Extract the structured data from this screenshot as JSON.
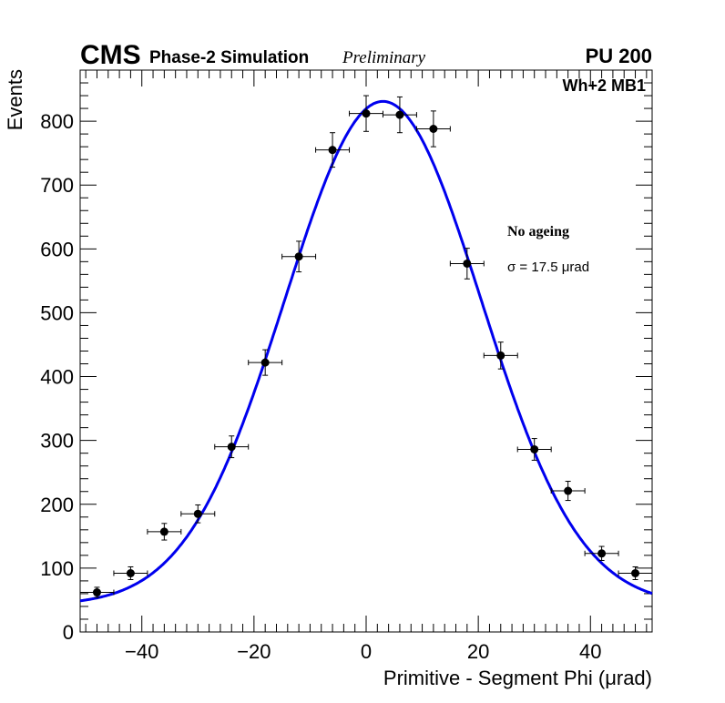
{
  "header": {
    "experiment": "CMS",
    "simulation": "Phase-2 Simulation",
    "status": "Preliminary",
    "pileup": "PU 200"
  },
  "chart_data": {
    "type": "scatter",
    "xlabel": "Primitive - Segment Phi (μrad)",
    "ylabel": "Events",
    "xlim": [
      -51,
      51
    ],
    "ylim": [
      0,
      880
    ],
    "x_ticks": [
      -40,
      -20,
      0,
      20,
      40
    ],
    "x_tick_labels": [
      "−40",
      "−20",
      "0",
      "20",
      "40"
    ],
    "y_ticks": [
      0,
      100,
      200,
      300,
      400,
      500,
      600,
      700,
      800
    ],
    "y_tick_labels": [
      "0",
      "100",
      "200",
      "300",
      "400",
      "500",
      "600",
      "700",
      "800"
    ],
    "series": [
      {
        "name": "Simulation",
        "x": [
          -48,
          -42,
          -36,
          -30,
          -24,
          -18,
          -12,
          -6,
          0,
          6,
          12,
          18,
          24,
          30,
          36,
          42,
          48
        ],
        "values": [
          62,
          92,
          157,
          185,
          290,
          422,
          588,
          755,
          812,
          810,
          788,
          577,
          433,
          286,
          221,
          123,
          92
        ],
        "errors": [
          8,
          10,
          13,
          14,
          17,
          20,
          24,
          27,
          28,
          28,
          28,
          24,
          21,
          17,
          15,
          11,
          10
        ],
        "x_halfwidth": 3
      }
    ],
    "fit": {
      "name": "Gaussian fit",
      "function": "gaus + constant",
      "amplitude": 789,
      "mean": 3,
      "sigma": 17.5,
      "constant": 42,
      "color": "#0000ee"
    },
    "legend": {
      "region": "Wh+2 MB1",
      "condition": "No ageing",
      "sigma_text": "σ = 17.5  μrad"
    }
  }
}
